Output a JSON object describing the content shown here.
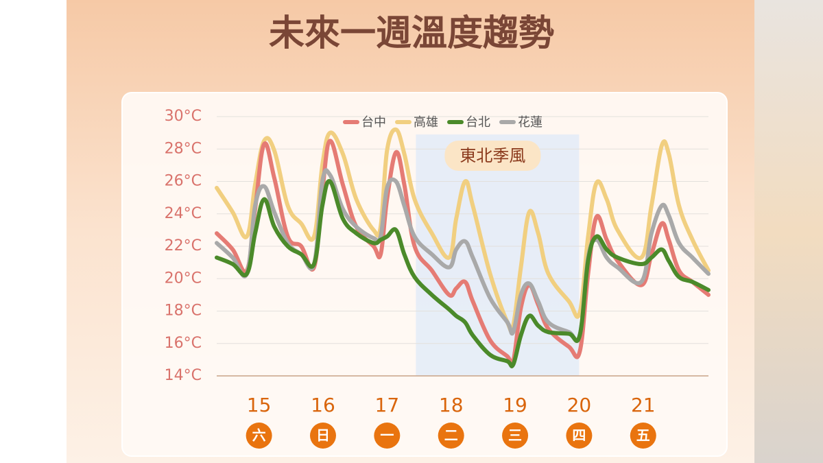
{
  "chart_data": {
    "type": "line",
    "title": "未來一週溫度趨勢",
    "x": [
      14.34,
      14.59,
      14.81,
      14.94,
      15.08,
      15.24,
      15.45,
      15.66,
      15.86,
      15.99,
      16.11,
      16.31,
      16.52,
      16.79,
      16.9,
      17.0,
      17.14,
      17.27,
      17.43,
      17.7,
      17.97,
      18.08,
      18.22,
      18.34,
      18.61,
      18.88,
      18.97,
      19.09,
      19.22,
      19.36,
      19.52,
      19.84,
      20.01,
      20.14,
      20.27,
      20.43,
      20.6,
      20.97,
      21.13,
      21.29,
      21.4,
      21.56,
      21.77,
      22.02
    ],
    "xlim": [
      14.34,
      22.02
    ],
    "xticks": [
      15,
      16,
      17,
      18,
      19,
      20,
      21
    ],
    "weekdays": [
      "六",
      "日",
      "一",
      "二",
      "三",
      "四",
      "五"
    ],
    "ylim": [
      14,
      30
    ],
    "yticks": [
      {
        "value": 14,
        "label": "14°C"
      },
      {
        "value": 16,
        "label": "16°C"
      },
      {
        "value": 18,
        "label": "18°C"
      },
      {
        "value": 20,
        "label": "20°C"
      },
      {
        "value": 22,
        "label": "22°C"
      },
      {
        "value": 24,
        "label": "24°C"
      },
      {
        "value": 26,
        "label": "26°C"
      },
      {
        "value": 28,
        "label": "28°C"
      },
      {
        "value": 30,
        "label": "30°C"
      }
    ],
    "grid": true,
    "legend": "top",
    "annotation": {
      "text": "東北季風",
      "x_range": [
        17.45,
        20.0
      ]
    },
    "series": [
      {
        "name": "台中",
        "color": "#e57b74",
        "values": [
          22.8,
          21.8,
          20.5,
          24.3,
          28.3,
          26.2,
          22.6,
          22.0,
          20.7,
          25.4,
          28.5,
          25.8,
          23.2,
          22.0,
          21.5,
          24.9,
          27.8,
          25.8,
          22.0,
          20.5,
          19.0,
          19.4,
          19.8,
          18.6,
          16.2,
          15.2,
          14.9,
          18.2,
          19.6,
          18.4,
          16.9,
          15.8,
          15.5,
          20.3,
          23.8,
          22.4,
          21.1,
          19.6,
          21.5,
          23.4,
          22.4,
          20.5,
          19.8,
          19.0
        ]
      },
      {
        "name": "高雄",
        "color": "#f1cf80",
        "values": [
          25.6,
          24.1,
          22.6,
          25.8,
          28.5,
          27.9,
          24.5,
          23.4,
          22.6,
          27.0,
          29.0,
          27.7,
          24.9,
          23.0,
          23.2,
          27.9,
          29.2,
          27.7,
          24.9,
          22.8,
          21.3,
          23.7,
          26.0,
          24.5,
          20.3,
          17.3,
          17.1,
          20.7,
          24.1,
          22.8,
          20.3,
          18.6,
          17.9,
          22.6,
          25.9,
          24.9,
          23.0,
          21.3,
          24.5,
          28.2,
          27.7,
          24.5,
          22.4,
          20.5
        ]
      },
      {
        "name": "台北",
        "color": "#4b8a2a",
        "values": [
          21.3,
          20.9,
          20.3,
          22.8,
          24.9,
          23.2,
          22.0,
          21.5,
          20.9,
          24.5,
          26.0,
          23.7,
          22.8,
          22.2,
          22.4,
          22.6,
          23.0,
          21.5,
          20.1,
          19.0,
          18.1,
          17.7,
          17.3,
          16.5,
          15.3,
          14.9,
          14.7,
          16.5,
          17.7,
          17.1,
          16.7,
          16.6,
          16.5,
          21.1,
          22.6,
          21.8,
          21.3,
          20.9,
          21.3,
          21.8,
          21.1,
          20.1,
          19.8,
          19.3
        ]
      },
      {
        "name": "花蓮",
        "color": "#a9a9a9",
        "values": [
          22.2,
          21.3,
          20.3,
          24.5,
          25.7,
          24.1,
          22.2,
          21.5,
          20.9,
          26.0,
          26.4,
          24.3,
          23.2,
          22.5,
          22.6,
          25.6,
          26.0,
          24.5,
          22.6,
          21.5,
          20.7,
          21.8,
          22.3,
          21.3,
          18.8,
          17.3,
          16.7,
          19.0,
          19.7,
          18.6,
          17.3,
          16.7,
          16.5,
          21.3,
          22.4,
          21.3,
          20.7,
          19.8,
          22.8,
          24.5,
          23.9,
          22.2,
          21.3,
          20.3
        ]
      }
    ]
  }
}
